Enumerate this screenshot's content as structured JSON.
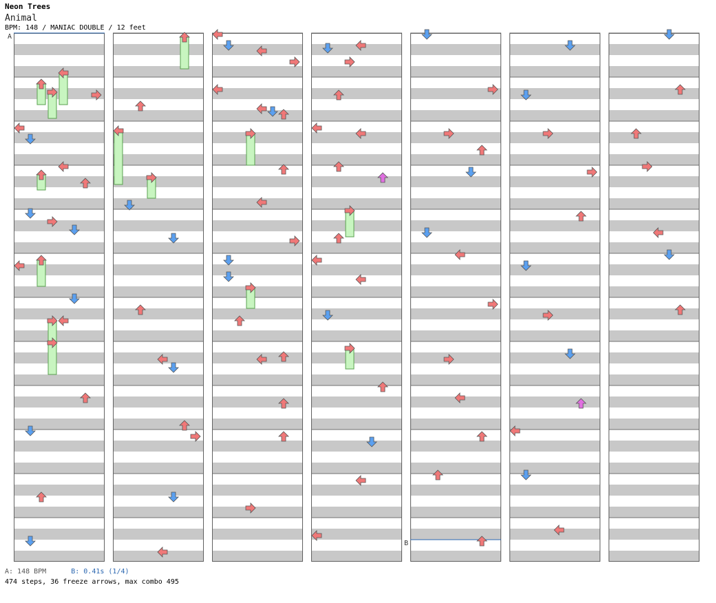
{
  "header": {
    "artist": "Neon Trees",
    "title": "Animal",
    "bpm_label": "BPM: 148",
    "chart_label": "MANIAC DOUBLE",
    "difficulty_label": "12 feet",
    "separator": " / "
  },
  "footer": {
    "bpm_note": "A: 148 BPM",
    "stop_note": "B: 0.41s (1/4)",
    "stats": "474 steps, 36 freeze arrows, max combo 495"
  },
  "colors": {
    "left_arrow": "#f07878",
    "down_arrow": "#5ba0f0",
    "up_arrow": "#f07878",
    "right_arrow": "#f07878",
    "shock_arrow": "#e070e0",
    "freeze_body": "#c8f5c0",
    "stripe_dark": "#c8c8c8",
    "stripe_light": "#ffffff",
    "bpm_marker": "#2a66b0"
  },
  "chart_data": {
    "type": "step_chart",
    "mode": "doubles",
    "lanes": [
      "P1-left",
      "P1-down",
      "P1-up",
      "P1-right",
      "P2-left",
      "P2-down",
      "P2-up",
      "P2-right"
    ],
    "columns": 7,
    "measures_per_column": 12,
    "total_measures": 79,
    "rows_per_measure": 16,
    "markers": [
      {
        "label": "A",
        "measure": 0,
        "row": 0,
        "text": "148 BPM"
      },
      {
        "label": "B",
        "measure": 59,
        "row": 8,
        "text": "0.41s (1/4)"
      }
    ],
    "totals": {
      "steps": 474,
      "freeze_arrows": 36,
      "max_combo": 495
    },
    "notes": [
      {
        "m": 0,
        "r": 14,
        "l": 4,
        "f": 12
      },
      {
        "m": 1,
        "r": 2,
        "l": 2,
        "f": 8
      },
      {
        "m": 1,
        "r": 5,
        "l": 3,
        "f": 10
      },
      {
        "m": 1,
        "r": 6,
        "l": 7
      },
      {
        "m": 2,
        "r": 2,
        "l": 0
      },
      {
        "m": 2,
        "r": 6,
        "l": 1
      },
      {
        "m": 3,
        "r": 0,
        "l": 4
      },
      {
        "m": 3,
        "r": 3,
        "l": 2,
        "f": 6
      },
      {
        "m": 3,
        "r": 6,
        "l": 6
      },
      {
        "m": 4,
        "r": 1,
        "l": 1
      },
      {
        "m": 4,
        "r": 4,
        "l": 3
      },
      {
        "m": 4,
        "r": 7,
        "l": 5
      },
      {
        "m": 5,
        "r": 2,
        "l": 2,
        "f": 10
      },
      {
        "m": 5,
        "r": 4,
        "l": 0
      },
      {
        "m": 6,
        "r": 0,
        "l": 5
      },
      {
        "m": 6,
        "r": 8,
        "l": 3,
        "f": 12
      },
      {
        "m": 6,
        "r": 8,
        "l": 4
      },
      {
        "m": 7,
        "r": 0,
        "l": 3,
        "f": 12
      },
      {
        "m": 8,
        "r": 4,
        "l": 6
      },
      {
        "m": 9,
        "r": 0,
        "l": 1
      },
      {
        "m": 10,
        "r": 8,
        "l": 2
      },
      {
        "m": 11,
        "r": 8,
        "l": 1
      },
      {
        "m": 12,
        "r": 1,
        "l": 6,
        "f": 12
      },
      {
        "m": 13,
        "r": 10,
        "l": 2
      },
      {
        "m": 14,
        "r": 3,
        "l": 0,
        "f": 20
      },
      {
        "m": 15,
        "r": 4,
        "l": 3,
        "f": 8
      },
      {
        "m": 15,
        "r": 14,
        "l": 1
      },
      {
        "m": 16,
        "r": 10,
        "l": 5
      },
      {
        "m": 18,
        "r": 4,
        "l": 2
      },
      {
        "m": 19,
        "r": 6,
        "l": 4
      },
      {
        "m": 19,
        "r": 9,
        "l": 5
      },
      {
        "m": 20,
        "r": 14,
        "l": 6
      },
      {
        "m": 21,
        "r": 2,
        "l": 7
      },
      {
        "m": 22,
        "r": 8,
        "l": 5
      },
      {
        "m": 23,
        "r": 12,
        "l": 4
      },
      {
        "m": 24,
        "r": 0,
        "l": 0
      },
      {
        "m": 24,
        "r": 4,
        "l": 1
      },
      {
        "m": 24,
        "r": 6,
        "l": 4
      },
      {
        "m": 24,
        "r": 10,
        "l": 7
      },
      {
        "m": 25,
        "r": 4,
        "l": 0
      },
      {
        "m": 25,
        "r": 11,
        "l": 4
      },
      {
        "m": 25,
        "r": 12,
        "l": 5
      },
      {
        "m": 25,
        "r": 13,
        "l": 6
      },
      {
        "m": 26,
        "r": 4,
        "l": 3,
        "f": 12
      },
      {
        "m": 27,
        "r": 1,
        "l": 6
      },
      {
        "m": 27,
        "r": 13,
        "l": 4
      },
      {
        "m": 28,
        "r": 11,
        "l": 7
      },
      {
        "m": 29,
        "r": 2,
        "l": 1
      },
      {
        "m": 29,
        "r": 8,
        "l": 1
      },
      {
        "m": 29,
        "r": 12,
        "l": 3,
        "f": 8
      },
      {
        "m": 30,
        "r": 8,
        "l": 2
      },
      {
        "m": 31,
        "r": 5,
        "l": 6
      },
      {
        "m": 31,
        "r": 6,
        "l": 4
      },
      {
        "m": 32,
        "r": 6,
        "l": 6
      },
      {
        "m": 33,
        "r": 2,
        "l": 6
      },
      {
        "m": 34,
        "r": 12,
        "l": 3
      },
      {
        "m": 36,
        "r": 4,
        "l": 4
      },
      {
        "m": 36,
        "r": 5,
        "l": 1
      },
      {
        "m": 36,
        "r": 10,
        "l": 3
      },
      {
        "m": 37,
        "r": 6,
        "l": 2
      },
      {
        "m": 38,
        "r": 2,
        "l": 0
      },
      {
        "m": 38,
        "r": 4,
        "l": 4
      },
      {
        "m": 39,
        "r": 0,
        "l": 2
      },
      {
        "m": 39,
        "r": 4,
        "l": 6,
        "s": 1
      },
      {
        "m": 40,
        "r": 0,
        "l": 3,
        "f": 10
      },
      {
        "m": 40,
        "r": 10,
        "l": 2
      },
      {
        "m": 41,
        "r": 2,
        "l": 0
      },
      {
        "m": 41,
        "r": 9,
        "l": 4
      },
      {
        "m": 42,
        "r": 6,
        "l": 1
      },
      {
        "m": 43,
        "r": 2,
        "l": 3,
        "f": 8
      },
      {
        "m": 44,
        "r": 0,
        "l": 6
      },
      {
        "m": 45,
        "r": 4,
        "l": 5
      },
      {
        "m": 46,
        "r": 2,
        "l": 4
      },
      {
        "m": 47,
        "r": 6,
        "l": 0
      },
      {
        "m": 48,
        "r": 0,
        "l": 1
      },
      {
        "m": 49,
        "r": 4,
        "l": 7
      },
      {
        "m": 50,
        "r": 4,
        "l": 3
      },
      {
        "m": 50,
        "r": 10,
        "l": 6
      },
      {
        "m": 51,
        "r": 2,
        "l": 5
      },
      {
        "m": 52,
        "r": 8,
        "l": 1
      },
      {
        "m": 53,
        "r": 0,
        "l": 4
      },
      {
        "m": 54,
        "r": 2,
        "l": 7
      },
      {
        "m": 55,
        "r": 6,
        "l": 3
      },
      {
        "m": 56,
        "r": 4,
        "l": 4
      },
      {
        "m": 57,
        "r": 2,
        "l": 6
      },
      {
        "m": 58,
        "r": 0,
        "l": 2
      },
      {
        "m": 59,
        "r": 8,
        "l": 6
      },
      {
        "m": 60,
        "r": 4,
        "l": 5
      },
      {
        "m": 61,
        "r": 6,
        "l": 1
      },
      {
        "m": 62,
        "r": 4,
        "l": 3
      },
      {
        "m": 63,
        "r": 2,
        "l": 7
      },
      {
        "m": 64,
        "r": 2,
        "l": 6
      },
      {
        "m": 65,
        "r": 4,
        "l": 1
      },
      {
        "m": 66,
        "r": 6,
        "l": 3
      },
      {
        "m": 67,
        "r": 4,
        "l": 5
      },
      {
        "m": 68,
        "r": 6,
        "l": 6,
        "s": 1
      },
      {
        "m": 69,
        "r": 0,
        "l": 0
      },
      {
        "m": 70,
        "r": 0,
        "l": 1
      },
      {
        "m": 71,
        "r": 4,
        "l": 4
      },
      {
        "m": 72,
        "r": 0,
        "l": 5
      },
      {
        "m": 73,
        "r": 4,
        "l": 6
      },
      {
        "m": 74,
        "r": 4,
        "l": 2
      },
      {
        "m": 75,
        "r": 0,
        "l": 3
      },
      {
        "m": 76,
        "r": 8,
        "l": 4
      },
      {
        "m": 77,
        "r": 0,
        "l": 5
      },
      {
        "m": 78,
        "r": 4,
        "l": 6
      }
    ]
  }
}
